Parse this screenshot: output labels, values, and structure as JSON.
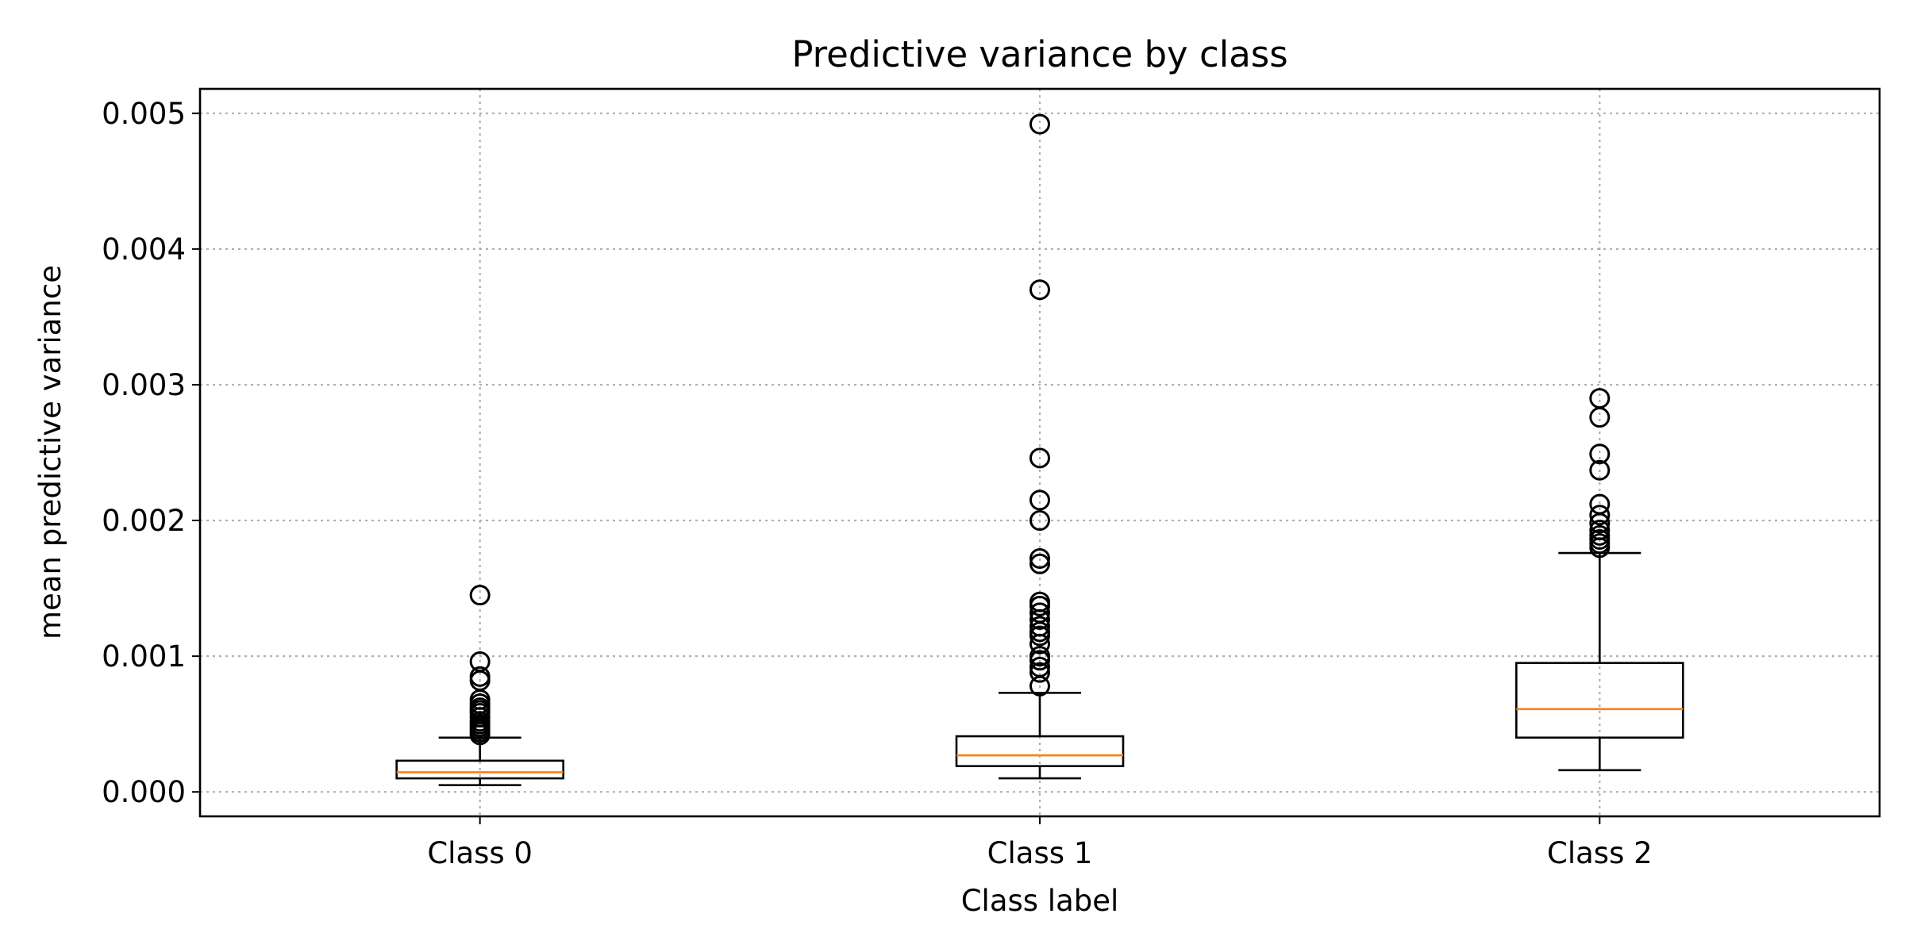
{
  "chart_data": {
    "type": "box",
    "title": "Predictive variance by class",
    "xlabel": "Class label",
    "ylabel": "mean predictive variance",
    "categories": [
      "Class 0",
      "Class 1",
      "Class 2"
    ],
    "ylim": [
      -0.00018,
      0.00518
    ],
    "yticks": [
      0.0,
      0.001,
      0.002,
      0.003,
      0.004,
      0.005
    ],
    "ytick_labels": [
      "0.000",
      "0.001",
      "0.002",
      "0.003",
      "0.004",
      "0.005"
    ],
    "grid": true,
    "series": [
      {
        "whisker_low": 5e-05,
        "q1": 0.0001,
        "median": 0.000145,
        "q3": 0.00023,
        "whisker_high": 0.0004,
        "fliers": [
          0.00042,
          0.00044,
          0.00046,
          0.00048,
          0.0005,
          0.00052,
          0.00055,
          0.00058,
          0.0006,
          0.00062,
          0.00065,
          0.00068,
          0.00082,
          0.00085,
          0.00096,
          0.00145
        ]
      },
      {
        "whisker_low": 0.0001,
        "q1": 0.00019,
        "median": 0.00027,
        "q3": 0.00041,
        "whisker_high": 0.00073,
        "fliers": [
          0.00078,
          0.00088,
          0.00092,
          0.00097,
          0.001,
          0.00109,
          0.00115,
          0.00118,
          0.00122,
          0.00127,
          0.00132,
          0.00137,
          0.0014,
          0.00168,
          0.00172,
          0.002,
          0.00215,
          0.00246,
          0.0037,
          0.00492
        ]
      },
      {
        "whisker_low": 0.00016,
        "q1": 0.0004,
        "median": 0.00061,
        "q3": 0.00095,
        "whisker_high": 0.00176,
        "fliers": [
          0.0018,
          0.00183,
          0.00186,
          0.00189,
          0.00193,
          0.00198,
          0.00204,
          0.00212,
          0.00237,
          0.00249,
          0.00276,
          0.0029
        ]
      }
    ],
    "colors": {
      "box": "#000000",
      "median": "#ff7f0e",
      "grid": "#b0b0b0"
    }
  }
}
